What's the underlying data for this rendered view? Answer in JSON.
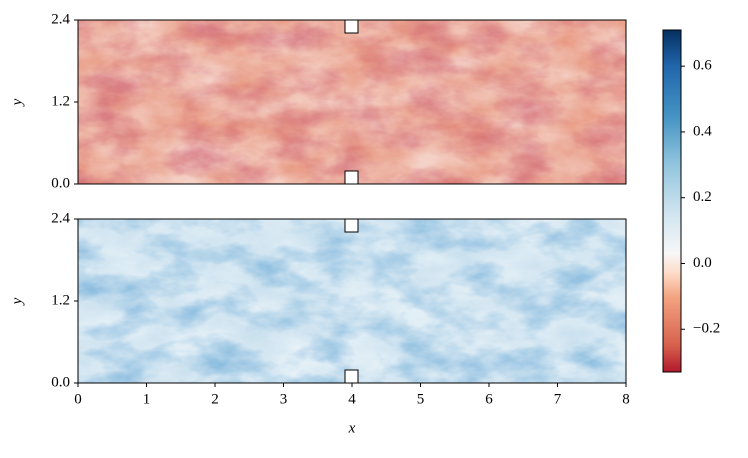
{
  "chart_data": [
    {
      "type": "heatmap",
      "xlim": [
        0,
        8
      ],
      "ylim": [
        0,
        2.4
      ],
      "yticks": [
        {
          "value": 0,
          "label": "0.0"
        },
        1.2,
        2.4
      ],
      "ylabel": "y",
      "field_color": "#e89a83"
    },
    {
      "type": "heatmap",
      "xlim": [
        0,
        8
      ],
      "ylim": [
        0,
        2.4
      ],
      "xticks": [
        0,
        1,
        2,
        3,
        4,
        5,
        6,
        7,
        8
      ],
      "yticks": [
        {
          "value": 0,
          "label": "0.0"
        },
        1.2,
        2.4
      ],
      "xlabel": "x",
      "ylabel": "y",
      "field_color": "#c9e0ee"
    }
  ],
  "colorbar": {
    "lim": [
      -0.33,
      0.71
    ],
    "ticks": [
      {
        "value": -0.2,
        "label": "−0.2"
      },
      {
        "value": 0,
        "label": "0.0"
      },
      0.2,
      0.4,
      0.6
    ],
    "colormap": "RdBu"
  }
}
